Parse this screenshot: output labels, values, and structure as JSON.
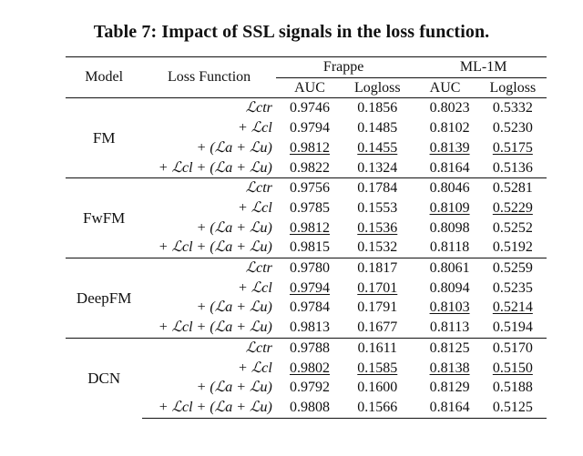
{
  "caption": "Table 7: Impact of SSL signals in the loss function.",
  "headers": {
    "model": "Model",
    "loss": "Loss Function",
    "datasets": [
      "Frappe",
      "ML-1M"
    ],
    "metrics": [
      "AUC",
      "Logloss",
      "AUC",
      "Logloss"
    ]
  },
  "loss_labels": [
    "ℒctr",
    "+ ℒcl",
    "+ (ℒa + ℒu)",
    "+ ℒcl + (ℒa + ℒu)"
  ],
  "groups": [
    {
      "model": "FM",
      "rows": [
        {
          "values": [
            "0.9746",
            "0.1856",
            "0.8023",
            "0.5332"
          ]
        },
        {
          "values": [
            "0.9794",
            "0.1485",
            "0.8102",
            "0.5230"
          ]
        },
        {
          "values": [
            "0.9812",
            "0.1455",
            "0.8139",
            "0.5175"
          ]
        },
        {
          "values": [
            "0.9822",
            "0.1324",
            "0.8164",
            "0.5136"
          ]
        }
      ]
    },
    {
      "model": "FwFM",
      "rows": [
        {
          "values": [
            "0.9756",
            "0.1784",
            "0.8046",
            "0.5281"
          ]
        },
        {
          "values": [
            "0.9785",
            "0.1553",
            "0.8109",
            "0.5229"
          ]
        },
        {
          "values": [
            "0.9812",
            "0.1536",
            "0.8098",
            "0.5252"
          ]
        },
        {
          "values": [
            "0.9815",
            "0.1532",
            "0.8118",
            "0.5192"
          ]
        }
      ]
    },
    {
      "model": "DeepFM",
      "rows": [
        {
          "values": [
            "0.9780",
            "0.1817",
            "0.8061",
            "0.5259"
          ]
        },
        {
          "values": [
            "0.9794",
            "0.1701",
            "0.8094",
            "0.5235"
          ]
        },
        {
          "values": [
            "0.9784",
            "0.1791",
            "0.8103",
            "0.5214"
          ]
        },
        {
          "values": [
            "0.9813",
            "0.1677",
            "0.8113",
            "0.5194"
          ]
        }
      ]
    },
    {
      "model": "DCN",
      "rows": [
        {
          "values": [
            "0.9788",
            "0.1611",
            "0.8125",
            "0.5170"
          ]
        },
        {
          "values": [
            "0.9802",
            "0.1585",
            "0.8138",
            "0.5150"
          ]
        },
        {
          "values": [
            "0.9792",
            "0.1600",
            "0.8129",
            "0.5188"
          ]
        },
        {
          "values": [
            "0.9808",
            "0.1566",
            "0.8164",
            "0.5125"
          ]
        }
      ]
    }
  ],
  "underlined_cells": [
    [
      0,
      2,
      0
    ],
    [
      0,
      2,
      1
    ],
    [
      0,
      2,
      2
    ],
    [
      0,
      2,
      3
    ],
    [
      1,
      1,
      2
    ],
    [
      1,
      1,
      3
    ],
    [
      1,
      2,
      0
    ],
    [
      1,
      2,
      1
    ],
    [
      2,
      1,
      0
    ],
    [
      2,
      1,
      1
    ],
    [
      2,
      2,
      2
    ],
    [
      2,
      2,
      3
    ],
    [
      3,
      1,
      0
    ],
    [
      3,
      1,
      1
    ],
    [
      3,
      1,
      2
    ],
    [
      3,
      1,
      3
    ]
  ],
  "bold_row_index": 3
}
